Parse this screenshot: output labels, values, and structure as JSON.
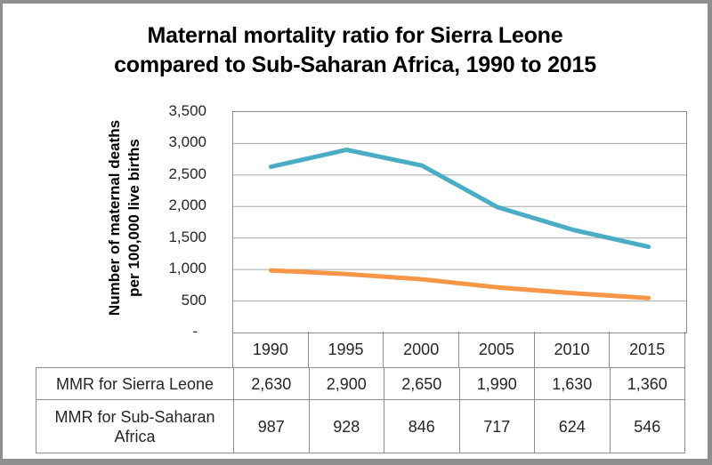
{
  "chart_data": {
    "type": "line",
    "title": "Maternal mortality ratio for Sierra Leone compared to Sub-Saharan Africa, 1990 to 2015",
    "title_lines": [
      "Maternal mortality ratio for Sierra Leone",
      "compared to Sub-Saharan Africa, 1990 to 2015"
    ],
    "ylabel": "Number of maternal deaths per 100,000 live births",
    "ylabel_lines": [
      "Number of maternal deaths",
      "per 100,000 live births"
    ],
    "xlabel": "",
    "categories": [
      "1990",
      "1995",
      "2000",
      "2005",
      "2010",
      "2015"
    ],
    "series": [
      {
        "name": "MMR for Sierra Leone",
        "color": "#4BACC6",
        "values": [
          2630,
          2900,
          2650,
          1990,
          1630,
          1360
        ],
        "values_display": [
          "2,630",
          "2,900",
          "2,650",
          "1,990",
          "1,630",
          "1,360"
        ]
      },
      {
        "name": "MMR for Sub-Saharan Africa",
        "color": "#F79646",
        "values": [
          987,
          928,
          846,
          717,
          624,
          546
        ],
        "values_display": [
          "987",
          "928",
          "846",
          "717",
          "624",
          "546"
        ]
      }
    ],
    "ylim": [
      0,
      3500
    ],
    "ytick_values": [
      3500,
      3000,
      2500,
      2000,
      1500,
      1000,
      500,
      0
    ],
    "ytick_labels": [
      "3,500",
      "3,000",
      "2,500",
      "2,000",
      "1,500",
      "1,000",
      "500",
      "-"
    ],
    "grid": "horizontal",
    "legend_position": "none",
    "colors": {
      "sierra_leone_line": "#4BACC6",
      "sub_saharan_line": "#F79646",
      "gridline": "#A8A8A8",
      "table_border": "#8C8C8C",
      "frame_border": "#8F8F8F",
      "text": "#262626"
    }
  }
}
